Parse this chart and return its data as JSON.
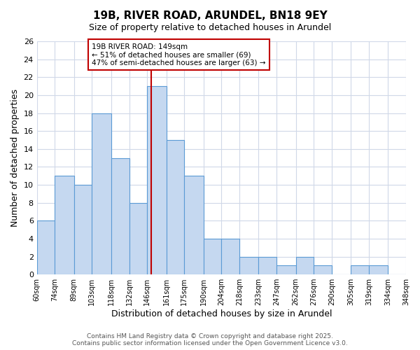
{
  "title_line1": "19B, RIVER ROAD, ARUNDEL, BN18 9EY",
  "title_line2": "Size of property relative to detached houses in Arundel",
  "xlabel": "Distribution of detached houses by size in Arundel",
  "ylabel": "Number of detached properties",
  "bin_edges": [
    60,
    74,
    89,
    103,
    118,
    132,
    146,
    161,
    175,
    190,
    204,
    218,
    233,
    247,
    262,
    276,
    290,
    305,
    319,
    334,
    348
  ],
  "bin_labels": [
    "60sqm",
    "74sqm",
    "89sqm",
    "103sqm",
    "118sqm",
    "132sqm",
    "146sqm",
    "161sqm",
    "175sqm",
    "190sqm",
    "204sqm",
    "218sqm",
    "233sqm",
    "247sqm",
    "262sqm",
    "276sqm",
    "290sqm",
    "305sqm",
    "319sqm",
    "334sqm",
    "348sqm"
  ],
  "counts": [
    6,
    11,
    10,
    18,
    13,
    8,
    21,
    15,
    11,
    4,
    4,
    2,
    2,
    1,
    2,
    1,
    0,
    1,
    1,
    0
  ],
  "bar_color": "#c5d8f0",
  "bar_edge_color": "#5b9bd5",
  "red_line_x": 149,
  "ylim": [
    0,
    26
  ],
  "yticks": [
    0,
    2,
    4,
    6,
    8,
    10,
    12,
    14,
    16,
    18,
    20,
    22,
    24,
    26
  ],
  "annotation_title": "19B RIVER ROAD: 149sqm",
  "annotation_line1": "← 51% of detached houses are smaller (69)",
  "annotation_line2": "47% of semi-detached houses are larger (63) →",
  "annotation_box_color": "#ffffff",
  "annotation_box_edge_color": "#c00000",
  "footer_line1": "Contains HM Land Registry data © Crown copyright and database right 2025.",
  "footer_line2": "Contains public sector information licensed under the Open Government Licence v3.0.",
  "background_color": "#ffffff",
  "grid_color": "#d0d8e8"
}
